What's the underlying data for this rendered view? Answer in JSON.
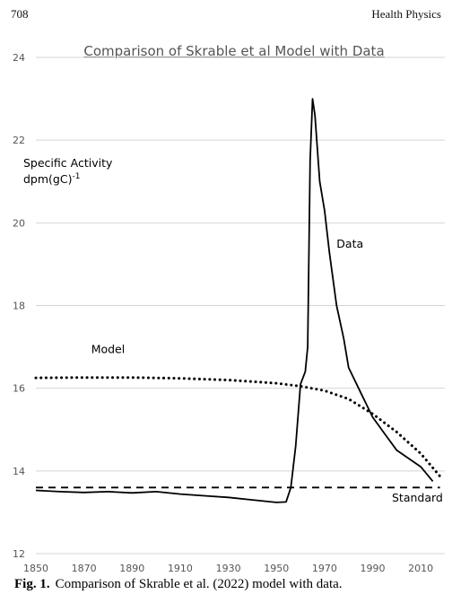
{
  "header": {
    "page_number": "708",
    "journal": "Health Physics"
  },
  "caption": {
    "label": "Fig. 1.",
    "text": "Comparison of Skrable et al. (2022) model with data."
  },
  "chart_data": {
    "type": "line",
    "title": "Comparison of Skrable et al Model with Data",
    "ylabel_line1": "Specific Activity",
    "ylabel_line2": "dpm(gC)",
    "ylabel_sup": "-1",
    "xlim": [
      1850,
      2020
    ],
    "ylim": [
      12,
      24
    ],
    "xticks": [
      1850,
      1870,
      1890,
      1910,
      1930,
      1950,
      1970,
      1990,
      2010
    ],
    "yticks": [
      12,
      14,
      16,
      18,
      20,
      22,
      24
    ],
    "grid": true,
    "series": [
      {
        "name": "Data",
        "style": "solid",
        "color": "#000000",
        "label_pos": [
          1975,
          19.4
        ],
        "points": [
          [
            1850,
            13.53
          ],
          [
            1860,
            13.5
          ],
          [
            1870,
            13.48
          ],
          [
            1880,
            13.5
          ],
          [
            1890,
            13.47
          ],
          [
            1900,
            13.5
          ],
          [
            1910,
            13.44
          ],
          [
            1920,
            13.4
          ],
          [
            1930,
            13.36
          ],
          [
            1940,
            13.3
          ],
          [
            1950,
            13.24
          ],
          [
            1954,
            13.25
          ],
          [
            1956,
            13.6
          ],
          [
            1958,
            14.6
          ],
          [
            1960,
            16.1
          ],
          [
            1962,
            16.4
          ],
          [
            1963,
            17.0
          ],
          [
            1964,
            21.5
          ],
          [
            1965,
            23.0
          ],
          [
            1966,
            22.6
          ],
          [
            1968,
            21.0
          ],
          [
            1970,
            20.3
          ],
          [
            1972,
            19.3
          ],
          [
            1975,
            18.0
          ],
          [
            1978,
            17.2
          ],
          [
            1980,
            16.5
          ],
          [
            1985,
            15.9
          ],
          [
            1990,
            15.3
          ],
          [
            1995,
            14.9
          ],
          [
            2000,
            14.5
          ],
          [
            2005,
            14.3
          ],
          [
            2010,
            14.1
          ],
          [
            2015,
            13.75
          ]
        ]
      },
      {
        "name": "Model",
        "style": "dotted",
        "color": "#000000",
        "label_pos": [
          1873,
          16.85
        ],
        "points": [
          [
            1850,
            16.25
          ],
          [
            1870,
            16.26
          ],
          [
            1890,
            16.26
          ],
          [
            1910,
            16.24
          ],
          [
            1930,
            16.2
          ],
          [
            1950,
            16.12
          ],
          [
            1960,
            16.05
          ],
          [
            1970,
            15.94
          ],
          [
            1980,
            15.74
          ],
          [
            1990,
            15.38
          ],
          [
            2000,
            14.94
          ],
          [
            2010,
            14.42
          ],
          [
            2018,
            13.87
          ]
        ]
      },
      {
        "name": "Standard",
        "style": "dashed",
        "color": "#000000",
        "label_pos": [
          1998,
          13.26
        ],
        "points": [
          [
            1850,
            13.6
          ],
          [
            2018,
            13.6
          ]
        ]
      }
    ]
  }
}
